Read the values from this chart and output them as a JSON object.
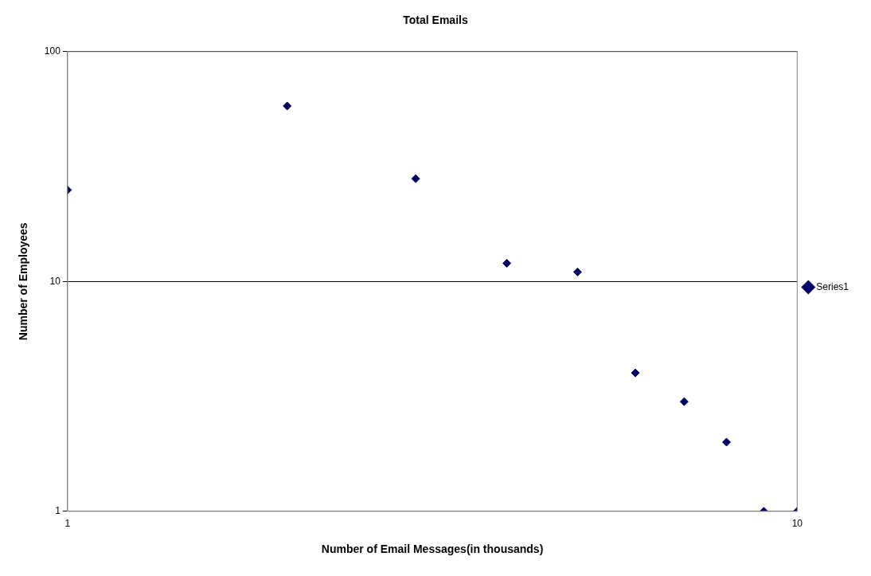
{
  "chart_data": {
    "type": "scatter",
    "title": "Total Emails",
    "xlabel": "Number of Email Messages(in thousands)",
    "ylabel": "Number of Employees",
    "x": [
      1,
      2,
      3,
      4,
      5,
      6,
      7,
      8,
      9,
      10
    ],
    "series": [
      {
        "name": "Series1",
        "color": "#000066",
        "values": [
          25,
          58,
          28,
          12,
          11,
          4,
          3,
          2,
          1,
          1
        ]
      }
    ],
    "log": "xy",
    "xlim": [
      1,
      10
    ],
    "ylim": [
      1,
      100
    ],
    "xticks": [
      1,
      10
    ],
    "yticks": [
      1,
      10,
      100
    ],
    "grid": "y",
    "legend": "right",
    "marker": "diamond"
  }
}
